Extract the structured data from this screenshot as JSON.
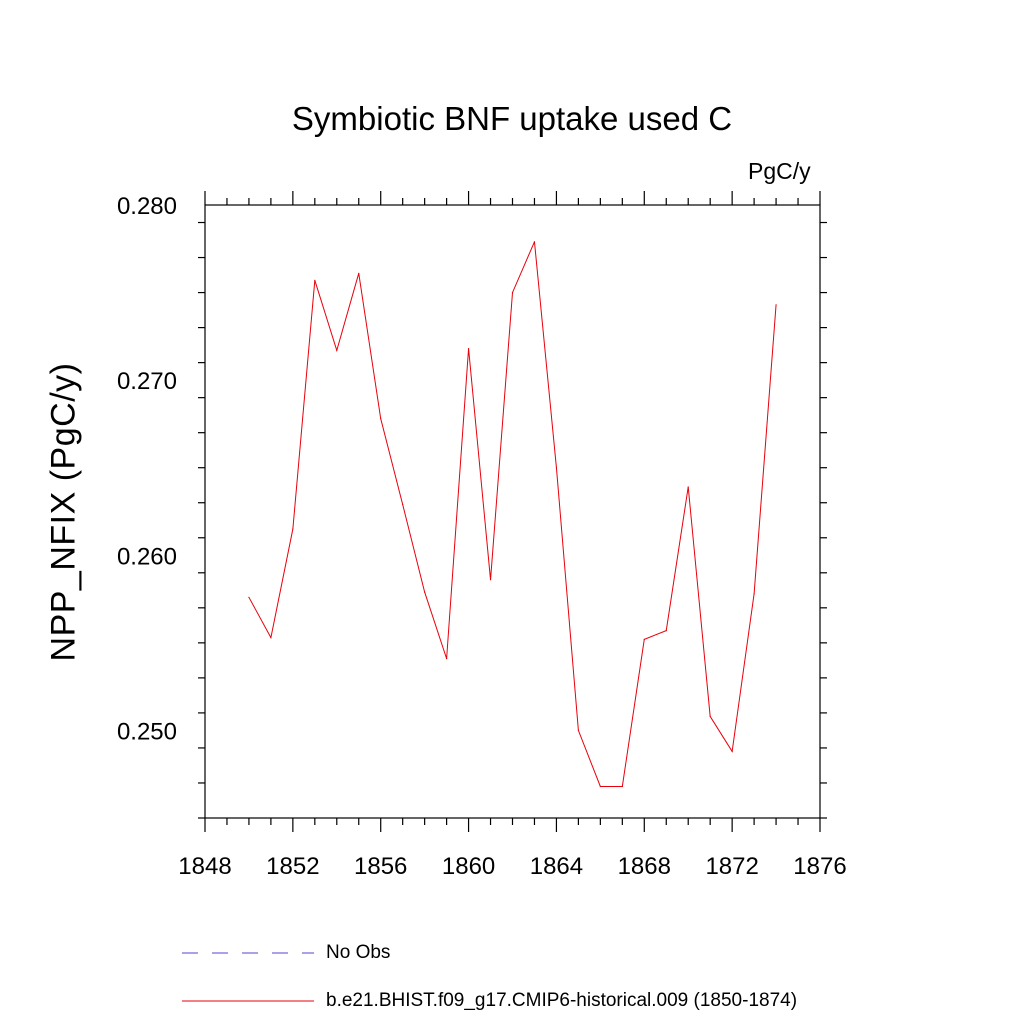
{
  "chart_data": {
    "type": "line",
    "title": "Symbiotic BNF uptake used C",
    "units_label": "PgC/y",
    "ylabel": "NPP_NFIX  (PgC/y)",
    "xlabel": "",
    "xlim": [
      1848,
      1876
    ],
    "ylim": [
      0.245,
      0.28
    ],
    "xticks": [
      1848,
      1852,
      1856,
      1860,
      1864,
      1868,
      1872,
      1876
    ],
    "yticks": [
      0.25,
      0.26,
      0.27,
      0.28
    ],
    "ytick_labels": [
      "0.250",
      "0.260",
      "0.270",
      "0.280"
    ],
    "series": [
      {
        "name": "b.e21.BHIST.f09_g17.CMIP6-historical.009 (1850-1874)",
        "color": "#e8000b",
        "style": "solid",
        "x": [
          1850,
          1851,
          1852,
          1853,
          1854,
          1855,
          1856,
          1857,
          1858,
          1859,
          1860,
          1861,
          1862,
          1863,
          1864,
          1865,
          1866,
          1867,
          1868,
          1869,
          1870,
          1871,
          1872,
          1873,
          1874
        ],
        "values": [
          0.2576,
          0.2553,
          0.2615,
          0.2757,
          0.2717,
          0.2761,
          0.2678,
          0.2629,
          0.2579,
          0.2541,
          0.2718,
          0.2586,
          0.275,
          0.2779,
          0.265,
          0.25,
          0.2468,
          0.2468,
          0.2552,
          0.2557,
          0.2639,
          0.2508,
          0.2488,
          0.2578,
          0.2743
        ]
      }
    ],
    "legend": [
      {
        "label": "No Obs",
        "color": "#7b68d9",
        "style": "dashed"
      },
      {
        "label": "b.e21.BHIST.f09_g17.CMIP6-historical.009 (1850-1874)",
        "color": "#e8000b",
        "style": "solid"
      }
    ]
  }
}
